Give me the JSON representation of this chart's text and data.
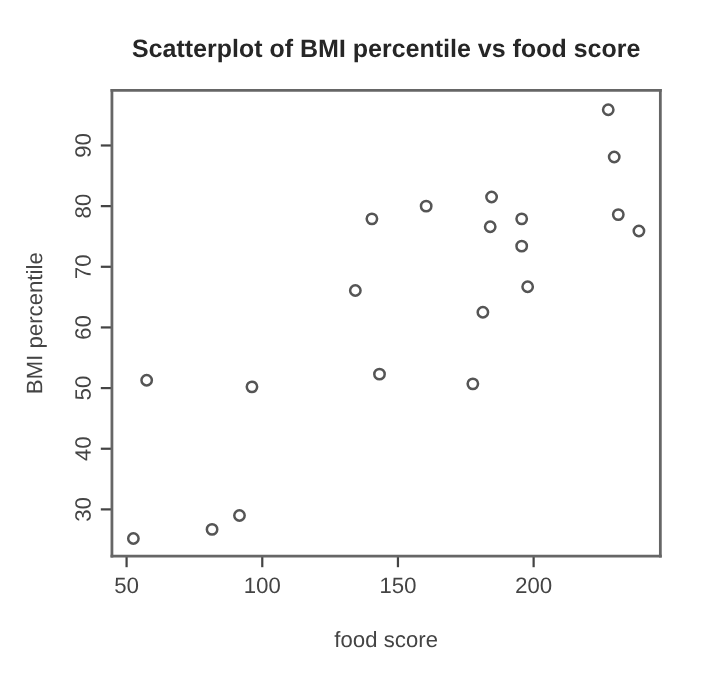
{
  "chart_data": {
    "type": "scatter",
    "title": "Scatterplot of BMI percentile vs food score",
    "xlabel": "food score",
    "ylabel": "BMI percentile",
    "x": [
      52.5,
      81.5,
      91.6,
      57.4,
      96.2,
      134.3,
      140.4,
      143.2,
      160.4,
      177.6,
      181.3,
      184.5,
      184.0,
      195.6,
      195.6,
      197.8,
      227.5,
      229.7,
      231.2,
      238.8
    ],
    "series": [
      {
        "color": "#555555",
        "values": [
          25.2,
          26.7,
          29.0,
          51.3,
          50.2,
          66.1,
          77.9,
          52.3,
          80.0,
          50.7,
          62.5,
          81.5,
          76.6,
          77.9,
          73.4,
          66.7,
          95.9,
          88.1,
          78.6,
          75.9
        ]
      }
    ],
    "xlim": [
      44.6,
      246.7
    ],
    "ylim": [
      22.3,
      99.1
    ],
    "xticks": [
      50,
      100,
      150,
      200
    ],
    "yticks": [
      30,
      40,
      50,
      60,
      70,
      80,
      90
    ],
    "marker": "circle",
    "grid": false,
    "legend": false
  }
}
